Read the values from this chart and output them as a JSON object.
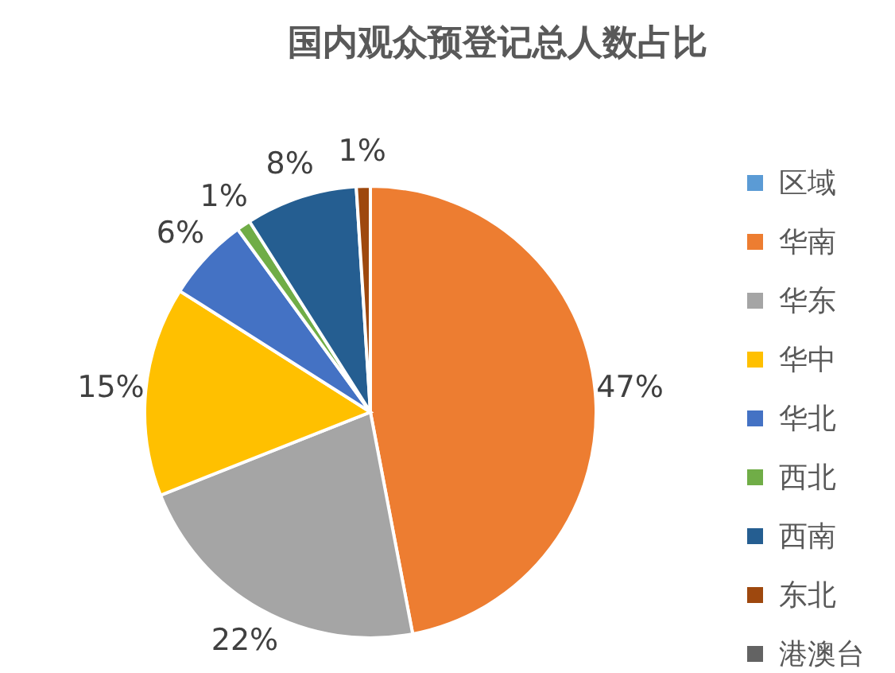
{
  "chart_data": {
    "type": "pie",
    "title": "国内观众预登记总人数占比",
    "categories": [
      "区域",
      "华南",
      "华东",
      "华中",
      "华北",
      "西北",
      "西南",
      "东北",
      "港澳台"
    ],
    "values": [
      0,
      47,
      22,
      15,
      6,
      1,
      8,
      1,
      0
    ],
    "value_labels": [
      null,
      "47%",
      "22%",
      "15%",
      "6%",
      "1%",
      "8%",
      "1%",
      null
    ],
    "colors": [
      "#5b9bd5",
      "#ed7d31",
      "#a5a5a5",
      "#ffc000",
      "#4472c4",
      "#70ad47",
      "#255e91",
      "#9e480e",
      "#636363"
    ],
    "legend": "right"
  }
}
